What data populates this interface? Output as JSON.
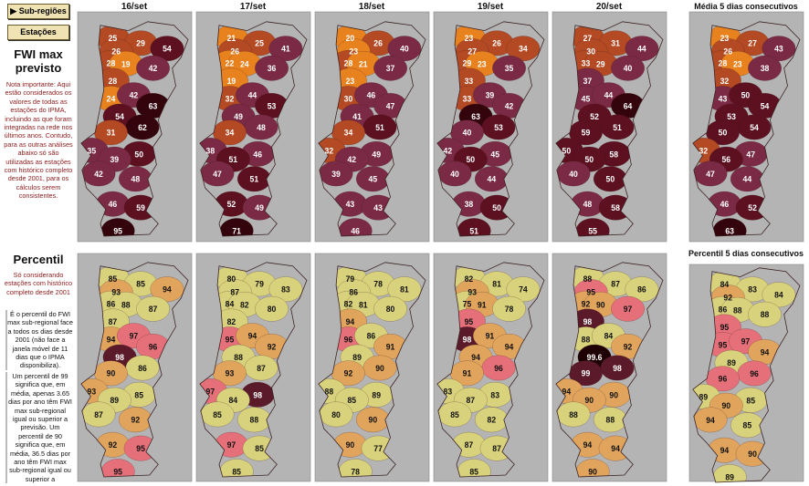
{
  "sidebar": {
    "buttons": [
      "Sub-regiões",
      "Estações"
    ],
    "fwi_title": "FWI max previsto",
    "fwi_note": "Nota importante: Aqui estão considerados os valores de todas as estações do IPMA, incluindo as que foram integradas na rede nos últimos anos. Contudo, para as outras análises abaixo só são utilizadas as estações com histórico completo desde 2001, para os cálculos serem consistentes.",
    "percentil_title": "Percentil",
    "percentil_note": "Só considerando estações com histórico completo desde 2001",
    "percentil_expl_1": "É o percentil do FWI max sub-regional face a todos os dias desde 2001 (não face a janela móvel de 11 dias que o IPMA disponibiliza).",
    "percentil_expl_2": "Um percentil de 99 significa que, em média, apenas 3.65 dias por ano têm FWI max sub-regional igual ou superior a previsão. Um percentil de 90 significa que, em média, 36.5 dias por ano têm FWI max sub-regional igual ou superior a"
  },
  "fwi_maps": [
    {
      "title": "16/set",
      "values": [
        25,
        29,
        54,
        26,
        28,
        19,
        42,
        28,
        24,
        42,
        63,
        54,
        62,
        31,
        35,
        50,
        39,
        42,
        48,
        46,
        59,
        95
      ]
    },
    {
      "title": "17/set",
      "values": [
        21,
        25,
        41,
        26,
        22,
        24,
        36,
        19,
        32,
        44,
        53,
        49,
        48,
        34,
        38,
        46,
        51,
        47,
        51,
        52,
        49,
        71
      ]
    },
    {
      "title": "18/set",
      "values": [
        20,
        26,
        40,
        23,
        28,
        21,
        37,
        23,
        30,
        46,
        47,
        41,
        51,
        34,
        32,
        49,
        42,
        39,
        45,
        43,
        43,
        46
      ]
    },
    {
      "title": "19/set",
      "values": [
        23,
        26,
        34,
        27,
        29,
        23,
        35,
        33,
        33,
        39,
        42,
        63,
        53,
        40,
        42,
        45,
        50,
        40,
        44,
        38,
        50,
        51
      ]
    },
    {
      "title": "20/set",
      "values": [
        27,
        31,
        44,
        30,
        33,
        29,
        40,
        37,
        45,
        44,
        64,
        52,
        51,
        59,
        50,
        58,
        50,
        40,
        50,
        48,
        58,
        55
      ]
    },
    {
      "title": "Média 5 dias consecutivos",
      "values": [
        23,
        27,
        43,
        26,
        28,
        23,
        38,
        32,
        43,
        50,
        54,
        53,
        54,
        50,
        32,
        47,
        56,
        47,
        44,
        46,
        52,
        63
      ]
    }
  ],
  "percentil_maps": [
    {
      "values": [
        85,
        85,
        94,
        93,
        86,
        88,
        87,
        87,
        94,
        97,
        96,
        98,
        86,
        90,
        93,
        85,
        89,
        87,
        92,
        92,
        95,
        95
      ]
    },
    {
      "values": [
        80,
        79,
        83,
        87,
        84,
        82,
        80,
        82,
        95,
        94,
        92,
        88,
        87,
        93,
        97,
        98,
        84,
        85,
        88,
        97,
        85,
        85
      ]
    },
    {
      "values": [
        79,
        78,
        81,
        86,
        82,
        81,
        80,
        94,
        96,
        86,
        91,
        89,
        90,
        92,
        88,
        89,
        85,
        80,
        90,
        90,
        77,
        78
      ]
    },
    {
      "values": [
        82,
        81,
        74,
        93,
        75,
        91,
        78,
        95,
        98,
        91,
        94,
        94,
        96,
        91,
        83,
        83,
        87,
        85,
        82,
        87,
        87,
        85
      ]
    },
    {
      "values": [
        88,
        87,
        86,
        95,
        92,
        90,
        97,
        98,
        88,
        84,
        92,
        99.6,
        98,
        99,
        94,
        90,
        90,
        88,
        88,
        94,
        94,
        90
      ]
    },
    {
      "title": "Percentil 5 dias consecutivos",
      "values": [
        84,
        83,
        84,
        92,
        86,
        88,
        88,
        95,
        95,
        97,
        94,
        89,
        96,
        96,
        89,
        85,
        90,
        94,
        85,
        94,
        90,
        89
      ]
    }
  ]
}
